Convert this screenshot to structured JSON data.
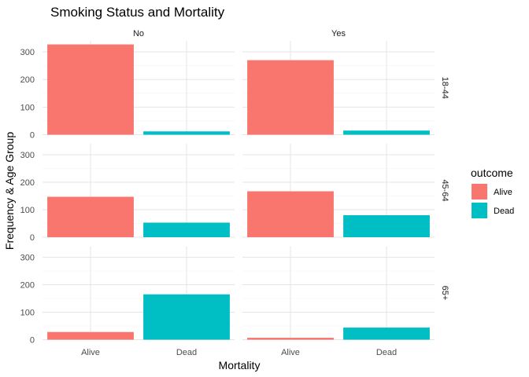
{
  "chart_data": {
    "type": "bar",
    "title": "Smoking Status and Mortality",
    "xlabel": "Mortality",
    "ylabel": "Frequency & Age Group",
    "categories": [
      "Alive",
      "Dead"
    ],
    "facet_columns": [
      "No",
      "Yes"
    ],
    "facet_rows": [
      "18-44",
      "45-64",
      "65+"
    ],
    "ylim": [
      0,
      340
    ],
    "yticks": [
      0,
      100,
      200,
      300
    ],
    "legend": {
      "title": "outcome",
      "position": "right",
      "entries": [
        {
          "label": "Alive",
          "color": "#F8766D"
        },
        {
          "label": "Dead",
          "color": "#00BFC4"
        }
      ]
    },
    "panels": [
      {
        "row": "18-44",
        "col": "No",
        "values": [
          327,
          12
        ]
      },
      {
        "row": "18-44",
        "col": "Yes",
        "values": [
          270,
          15
        ]
      },
      {
        "row": "45-64",
        "col": "No",
        "values": [
          147,
          53
        ]
      },
      {
        "row": "45-64",
        "col": "Yes",
        "values": [
          167,
          80
        ]
      },
      {
        "row": "65+",
        "col": "No",
        "values": [
          28,
          165
        ]
      },
      {
        "row": "65+",
        "col": "Yes",
        "values": [
          7,
          44
        ]
      }
    ],
    "grid": true
  }
}
